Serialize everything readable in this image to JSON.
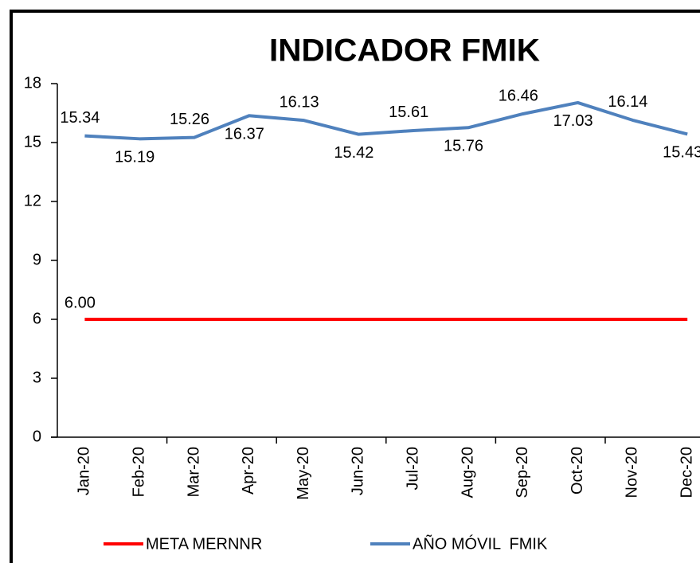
{
  "chart_data": {
    "type": "line",
    "title": "INDICADOR FMIK",
    "categories": [
      "Jan-20",
      "Feb-20",
      "Mar-20",
      "Apr-20",
      "May-20",
      "Jun-20",
      "Jul-20",
      "Aug-20",
      "Sep-20",
      "Oct-20",
      "Nov-20",
      "Dec-20"
    ],
    "series": [
      {
        "name": "META MERNNR",
        "color": "#ff0000",
        "values": [
          6,
          6,
          6,
          6,
          6,
          6,
          6,
          6,
          6,
          6,
          6,
          6
        ],
        "value_labels": [
          "6.00",
          null,
          null,
          null,
          null,
          null,
          null,
          null,
          null,
          null,
          null,
          null
        ]
      },
      {
        "name": "AÑO MÓVIL  FMIK",
        "color": "#4f81bd",
        "values": [
          15.34,
          15.19,
          15.26,
          16.37,
          16.13,
          15.42,
          15.61,
          15.76,
          16.46,
          17.03,
          16.14,
          15.43
        ]
      }
    ],
    "ylim": [
      0,
      18
    ],
    "yticks": [
      0,
      3,
      6,
      9,
      12,
      15,
      18
    ],
    "legend": "bottom"
  }
}
